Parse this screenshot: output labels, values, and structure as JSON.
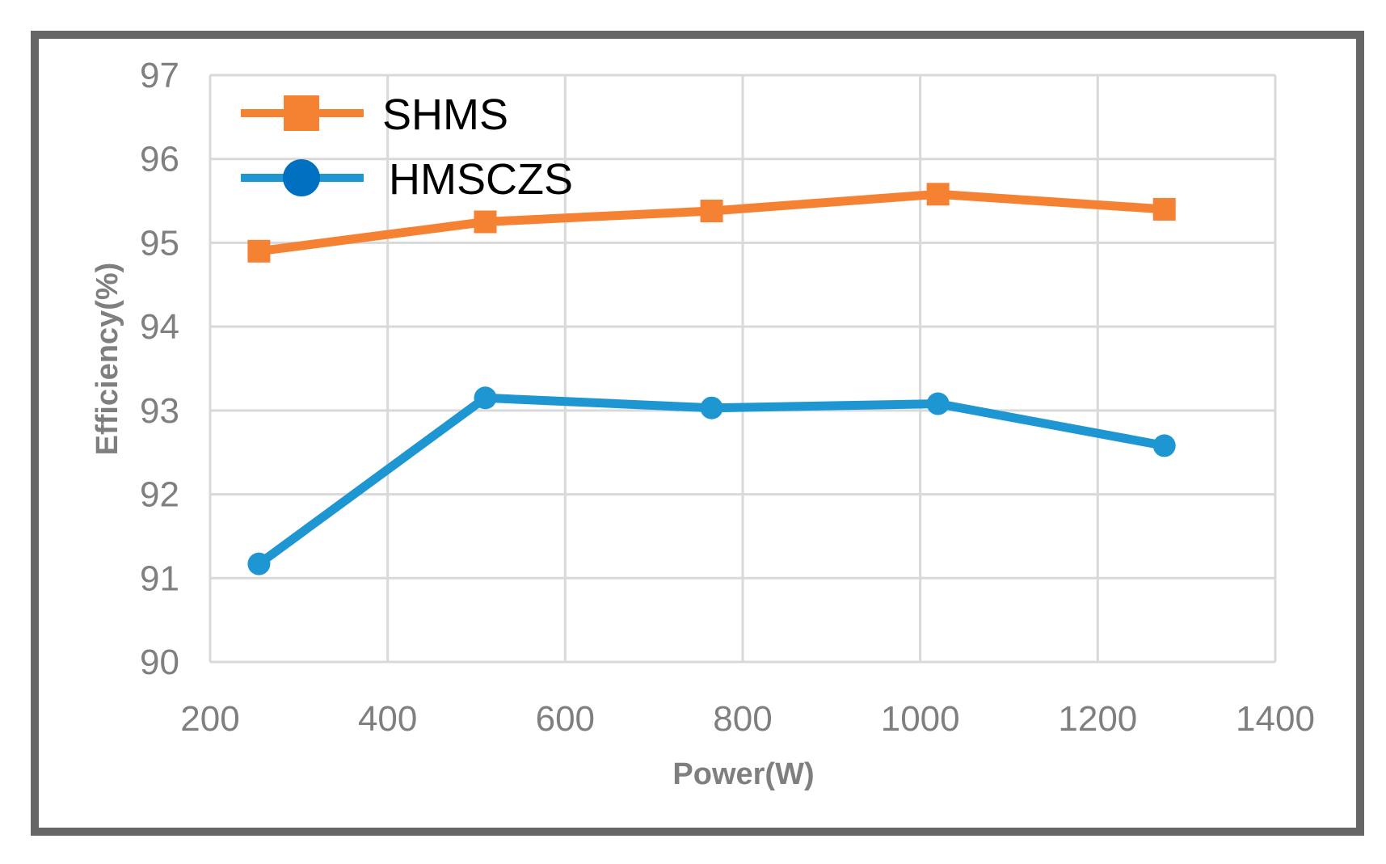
{
  "chart_data": {
    "type": "line",
    "title": "",
    "xlabel": "Power(W)",
    "ylabel": "Efficiency(%)",
    "xlim": [
      200,
      1400
    ],
    "ylim": [
      90,
      97
    ],
    "x_ticks": [
      "200",
      "400",
      "600",
      "800",
      "1000",
      "1200",
      "1400"
    ],
    "y_ticks": [
      "90",
      "91",
      "92",
      "93",
      "94",
      "95",
      "96",
      "97"
    ],
    "grid": true,
    "legend_position": "top-left",
    "series": [
      {
        "name": "SHMS",
        "color": "#f58233",
        "marker": "square",
        "x": [
          255,
          510,
          765,
          1020,
          1275
        ],
        "y": [
          94.9,
          95.25,
          95.38,
          95.58,
          95.4
        ]
      },
      {
        "name": "HMSCZS",
        "color": "#1e96d2",
        "marker": "circle",
        "x": [
          255,
          510,
          765,
          1020,
          1275
        ],
        "y": [
          91.17,
          93.15,
          93.03,
          93.08,
          92.58
        ]
      }
    ]
  }
}
